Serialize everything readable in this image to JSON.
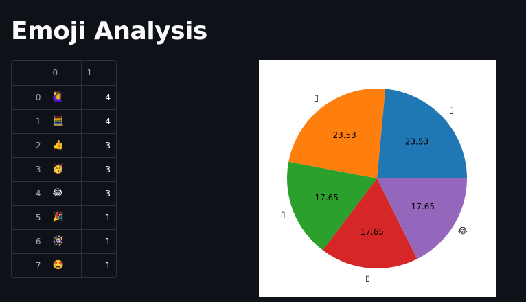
{
  "title": "Emoji Analysis",
  "table": {
    "columns": [
      "",
      "0",
      "1"
    ],
    "rows": [
      {
        "index": "0",
        "emoji": "🙋‍♀️",
        "count": "4"
      },
      {
        "index": "1",
        "emoji": "🧮",
        "count": "4"
      },
      {
        "index": "2",
        "emoji": "👍",
        "count": "3"
      },
      {
        "index": "3",
        "emoji": "🥳",
        "count": "3"
      },
      {
        "index": "4",
        "emoji": "😂",
        "count": "3"
      },
      {
        "index": "5",
        "emoji": "🎉",
        "count": "1"
      },
      {
        "index": "6",
        "emoji": "🪅",
        "count": "1"
      },
      {
        "index": "7",
        "emoji": "🤩",
        "count": "1"
      }
    ]
  },
  "chart_data": {
    "type": "pie",
    "categories": [
      "🙋‍♀️",
      "🧮",
      "👍",
      "🥳",
      "😂"
    ],
    "category_labels_rendered": [
      "▯",
      "▯",
      "▯",
      "▯",
      "😂"
    ],
    "values": [
      4,
      4,
      3,
      3,
      3
    ],
    "pct_labels": [
      "23.53",
      "23.53",
      "17.65",
      "17.65",
      "17.65"
    ],
    "colors": [
      "#1f77b4",
      "#ff7f0e",
      "#2ca02c",
      "#d62728",
      "#9467bd"
    ],
    "start_angle_deg": 0,
    "direction": "counterclockwise",
    "title": "",
    "background": "#ffffff"
  }
}
